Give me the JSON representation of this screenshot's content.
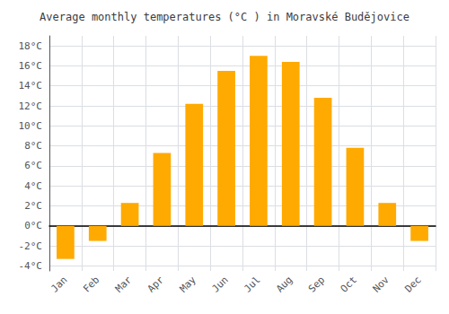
{
  "chart_data": {
    "type": "bar",
    "title": "Average monthly temperatures (°C ) in Moravské Budějovice",
    "categories": [
      "Jan",
      "Feb",
      "Mar",
      "Apr",
      "May",
      "Jun",
      "Jul",
      "Aug",
      "Sep",
      "Oct",
      "Nov",
      "Dec"
    ],
    "values": [
      -3.3,
      -1.5,
      2.3,
      7.3,
      12.2,
      15.5,
      17.0,
      16.4,
      12.8,
      7.8,
      2.3,
      -1.5
    ],
    "color": "#FFAA00",
    "ylim": [
      -4.5,
      19
    ],
    "yticks": [
      {
        "value": -4,
        "label": "-4°C"
      },
      {
        "value": -2,
        "label": "-2°C"
      },
      {
        "value": 0,
        "label": "0°C"
      },
      {
        "value": 2,
        "label": "2°C"
      },
      {
        "value": 4,
        "label": "4°C"
      },
      {
        "value": 6,
        "label": "6°C"
      },
      {
        "value": 8,
        "label": "8°C"
      },
      {
        "value": 10,
        "label": "10°C"
      },
      {
        "value": 12,
        "label": "12°C"
      },
      {
        "value": 14,
        "label": "14°C"
      },
      {
        "value": 16,
        "label": "16°C"
      },
      {
        "value": 18,
        "label": "18°C"
      }
    ],
    "grid": true
  }
}
